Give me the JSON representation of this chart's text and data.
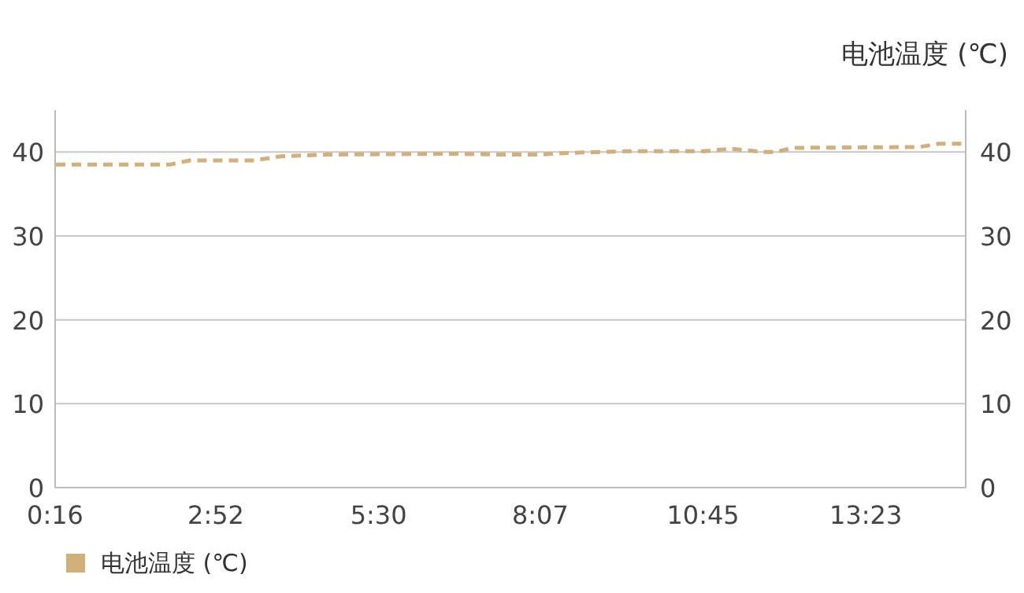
{
  "chart_data": {
    "type": "line",
    "title": "电池温度 (℃)",
    "x": [
      0.28,
      2.12,
      2.44,
      3.49,
      3.92,
      4.65,
      6.77,
      7.4,
      8.13,
      8.56,
      9.51,
      9.93,
      10.77,
      11.2,
      11.72,
      11.93,
      12.2,
      14.25,
      14.57,
      14.95
    ],
    "xlim": [
      0.2667,
      15
    ],
    "xticks": [
      {
        "value": 0.2667,
        "label": "0:16"
      },
      {
        "value": 2.8667,
        "label": "2:52"
      },
      {
        "value": 5.5,
        "label": "5:30"
      },
      {
        "value": 8.1167,
        "label": "8:07"
      },
      {
        "value": 10.75,
        "label": "10:45"
      },
      {
        "value": 13.3833,
        "label": "13:23"
      }
    ],
    "ylim": [
      0,
      45
    ],
    "yticks": [
      0,
      10,
      20,
      30,
      40
    ],
    "y2lim": [
      0,
      45
    ],
    "y2ticks": [
      0,
      10,
      20,
      30,
      40
    ],
    "series": [
      {
        "name": "电池温度 (℃)",
        "color": "#d2b07a",
        "values": [
          38.5,
          38.5,
          39.0,
          39.0,
          39.5,
          39.7,
          39.8,
          39.7,
          39.7,
          39.9,
          40.1,
          40.1,
          40.1,
          40.4,
          40.0,
          40.0,
          40.5,
          40.6,
          41.0,
          41.0
        ]
      }
    ],
    "grid": "y",
    "legend": "bottom left",
    "line_style": "dashed",
    "marker": "none"
  }
}
